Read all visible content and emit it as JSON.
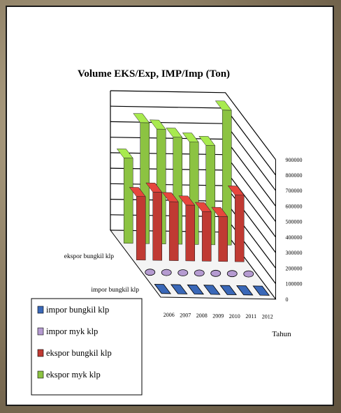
{
  "colors": {
    "impor_bungkil": "#3a68b8",
    "impor_myk": "#b59bd1",
    "ekspor_bungkil": "#c03a33",
    "ekspor_myk": "#8cc342"
  },
  "chart_data": {
    "type": "bar",
    "title": "Volume EKS/Exp, IMP/Imp (Ton)",
    "xlabel": "Tahun",
    "categories": [
      "2006",
      "2007",
      "2008",
      "2009",
      "2010",
      "2011",
      "2012"
    ],
    "depth_labels": [
      "ekspor bungkil klp",
      "impor bungkil klp"
    ],
    "y_ticks": [
      "900000",
      "800000",
      "700000",
      "600000",
      "500000",
      "400000",
      "300000",
      "200000",
      "100000",
      "0"
    ],
    "ylim": [
      0,
      900000
    ],
    "legend_placement": "bottom-left",
    "series": [
      {
        "name": "impor bungkil klp",
        "values": [
          0,
          0,
          0,
          0,
          0,
          0,
          0
        ]
      },
      {
        "name": "impor myk klp",
        "values": [
          0,
          0,
          0,
          0,
          0,
          0,
          0
        ]
      },
      {
        "name": "ekspor bungkil klp",
        "values": [
          410000,
          440000,
          380000,
          360000,
          320000,
          290000,
          430000
        ]
      },
      {
        "name": "ekspor myk klp",
        "values": [
          550000,
          780000,
          740000,
          690000,
          660000,
          640000,
          870000
        ]
      }
    ]
  }
}
